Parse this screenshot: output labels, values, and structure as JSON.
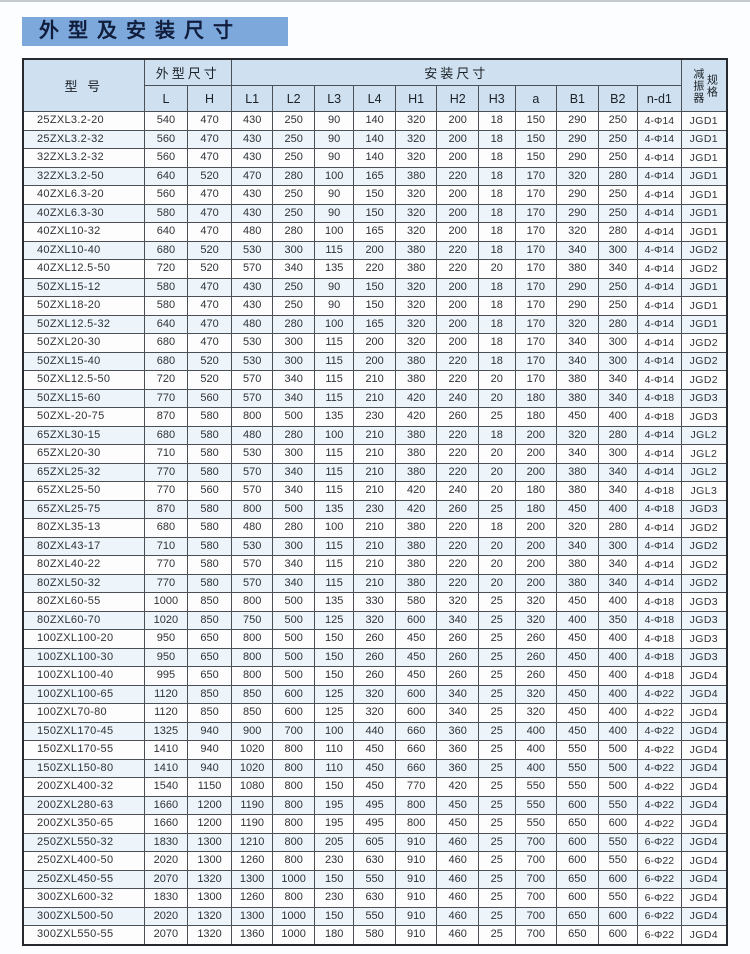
{
  "page": {
    "title": "外型及安装尺寸"
  },
  "colors": {
    "title_bg": "#7ca8dc",
    "title_text": "#101d3c",
    "header_bg": "#cfe1f0",
    "border": "#4b5056",
    "border_strong": "#26292e"
  },
  "table": {
    "header": {
      "model": "型 号",
      "outline_group": "外型尺寸",
      "install_group": "安装尺寸",
      "damper_line1": "减振器",
      "damper_line2": "规格",
      "columns": [
        "L",
        "H",
        "L1",
        "L2",
        "L3",
        "L4",
        "H1",
        "H2",
        "H3",
        "a",
        "B1",
        "B2",
        "n-d1"
      ]
    },
    "rows": [
      [
        "25ZXL3.2-20",
        "540",
        "470",
        "430",
        "250",
        "90",
        "140",
        "320",
        "200",
        "18",
        "150",
        "290",
        "250",
        "4-Φ14",
        "JGD1"
      ],
      [
        "25ZXL3.2-32",
        "560",
        "470",
        "430",
        "250",
        "90",
        "140",
        "320",
        "200",
        "18",
        "150",
        "290",
        "250",
        "4-Φ14",
        "JGD1"
      ],
      [
        "32ZXL3.2-32",
        "560",
        "470",
        "430",
        "250",
        "90",
        "140",
        "320",
        "200",
        "18",
        "150",
        "290",
        "250",
        "4-Φ14",
        "JGD1"
      ],
      [
        "32ZXL3.2-50",
        "640",
        "520",
        "470",
        "280",
        "100",
        "165",
        "380",
        "220",
        "18",
        "170",
        "320",
        "280",
        "4-Φ14",
        "JGD1"
      ],
      [
        "40ZXL6.3-20",
        "560",
        "470",
        "430",
        "250",
        "90",
        "150",
        "320",
        "200",
        "18",
        "170",
        "290",
        "250",
        "4-Φ14",
        "JGD1"
      ],
      [
        "40ZXL6.3-30",
        "580",
        "470",
        "430",
        "250",
        "90",
        "150",
        "320",
        "200",
        "18",
        "170",
        "290",
        "250",
        "4-Φ14",
        "JGD1"
      ],
      [
        "40ZXL10-32",
        "640",
        "470",
        "480",
        "280",
        "100",
        "165",
        "320",
        "200",
        "18",
        "170",
        "320",
        "280",
        "4-Φ14",
        "JGD1"
      ],
      [
        "40ZXL10-40",
        "680",
        "520",
        "530",
        "300",
        "115",
        "200",
        "380",
        "220",
        "18",
        "170",
        "340",
        "300",
        "4-Φ14",
        "JGD2"
      ],
      [
        "40ZXL12.5-50",
        "720",
        "520",
        "570",
        "340",
        "135",
        "220",
        "380",
        "220",
        "20",
        "170",
        "380",
        "340",
        "4-Φ14",
        "JGD2"
      ],
      [
        "50ZXL15-12",
        "580",
        "470",
        "430",
        "250",
        "90",
        "150",
        "320",
        "200",
        "18",
        "170",
        "290",
        "250",
        "4-Φ14",
        "JGD1"
      ],
      [
        "50ZXL18-20",
        "580",
        "470",
        "430",
        "250",
        "90",
        "150",
        "320",
        "200",
        "18",
        "170",
        "290",
        "250",
        "4-Φ14",
        "JGD1"
      ],
      [
        "50ZXL12.5-32",
        "640",
        "470",
        "480",
        "280",
        "100",
        "165",
        "320",
        "200",
        "18",
        "170",
        "320",
        "280",
        "4-Φ14",
        "JGD1"
      ],
      [
        "50ZXL20-30",
        "680",
        "470",
        "530",
        "300",
        "115",
        "200",
        "320",
        "200",
        "18",
        "170",
        "340",
        "300",
        "4-Φ14",
        "JGD2"
      ],
      [
        "50ZXL15-40",
        "680",
        "520",
        "530",
        "300",
        "115",
        "200",
        "380",
        "220",
        "18",
        "170",
        "340",
        "300",
        "4-Φ14",
        "JGD2"
      ],
      [
        "50ZXL12.5-50",
        "720",
        "520",
        "570",
        "340",
        "115",
        "210",
        "380",
        "220",
        "20",
        "170",
        "380",
        "340",
        "4-Φ14",
        "JGD2"
      ],
      [
        "50ZXL15-60",
        "770",
        "560",
        "570",
        "340",
        "115",
        "210",
        "420",
        "240",
        "20",
        "180",
        "380",
        "340",
        "4-Φ18",
        "JGD3"
      ],
      [
        "50ZXL-20-75",
        "870",
        "580",
        "800",
        "500",
        "135",
        "230",
        "420",
        "260",
        "25",
        "180",
        "450",
        "400",
        "4-Φ18",
        "JGD3"
      ],
      [
        "65ZXL30-15",
        "680",
        "580",
        "480",
        "280",
        "100",
        "210",
        "380",
        "220",
        "18",
        "200",
        "320",
        "280",
        "4-Φ14",
        "JGL2"
      ],
      [
        "65ZXL20-30",
        "710",
        "580",
        "530",
        "300",
        "115",
        "210",
        "380",
        "220",
        "20",
        "200",
        "340",
        "300",
        "4-Φ14",
        "JGL2"
      ],
      [
        "65ZXL25-32",
        "770",
        "580",
        "570",
        "340",
        "115",
        "210",
        "380",
        "220",
        "20",
        "200",
        "380",
        "340",
        "4-Φ14",
        "JGL2"
      ],
      [
        "65ZXL25-50",
        "770",
        "560",
        "570",
        "340",
        "115",
        "210",
        "420",
        "240",
        "20",
        "180",
        "380",
        "340",
        "4-Φ18",
        "JGL3"
      ],
      [
        "65ZXL25-75",
        "870",
        "580",
        "800",
        "500",
        "135",
        "230",
        "420",
        "260",
        "25",
        "180",
        "450",
        "400",
        "4-Φ18",
        "JGD3"
      ],
      [
        "80ZXL35-13",
        "680",
        "580",
        "480",
        "280",
        "100",
        "210",
        "380",
        "220",
        "18",
        "200",
        "320",
        "280",
        "4-Φ14",
        "JGD2"
      ],
      [
        "80ZXL43-17",
        "710",
        "580",
        "530",
        "300",
        "115",
        "210",
        "380",
        "220",
        "20",
        "200",
        "340",
        "300",
        "4-Φ14",
        "JGD2"
      ],
      [
        "80ZXL40-22",
        "770",
        "580",
        "570",
        "340",
        "115",
        "210",
        "380",
        "220",
        "20",
        "200",
        "380",
        "340",
        "4-Φ14",
        "JGD2"
      ],
      [
        "80ZXL50-32",
        "770",
        "580",
        "570",
        "340",
        "115",
        "210",
        "380",
        "220",
        "20",
        "200",
        "380",
        "340",
        "4-Φ14",
        "JGD2"
      ],
      [
        "80ZXL60-55",
        "1000",
        "850",
        "800",
        "500",
        "135",
        "330",
        "580",
        "320",
        "25",
        "320",
        "450",
        "400",
        "4-Φ18",
        "JGD3"
      ],
      [
        "80ZXL60-70",
        "1020",
        "850",
        "750",
        "500",
        "125",
        "320",
        "600",
        "340",
        "25",
        "320",
        "400",
        "350",
        "4-Φ18",
        "JGD3"
      ],
      [
        "100ZXL100-20",
        "950",
        "650",
        "800",
        "500",
        "150",
        "260",
        "450",
        "260",
        "25",
        "260",
        "450",
        "400",
        "4-Φ18",
        "JGD3"
      ],
      [
        "100ZXL100-30",
        "950",
        "650",
        "800",
        "500",
        "150",
        "260",
        "450",
        "260",
        "25",
        "260",
        "450",
        "400",
        "4-Φ18",
        "JGD3"
      ],
      [
        "100ZXL100-40",
        "995",
        "650",
        "800",
        "500",
        "150",
        "260",
        "450",
        "260",
        "25",
        "260",
        "450",
        "400",
        "4-Φ18",
        "JGD4"
      ],
      [
        "100ZXL100-65",
        "1120",
        "850",
        "850",
        "600",
        "125",
        "320",
        "600",
        "340",
        "25",
        "320",
        "450",
        "400",
        "4-Φ22",
        "JGD4"
      ],
      [
        "100ZXL70-80",
        "1120",
        "850",
        "850",
        "600",
        "125",
        "320",
        "600",
        "340",
        "25",
        "320",
        "450",
        "400",
        "4-Φ22",
        "JGD4"
      ],
      [
        "150ZXL170-45",
        "1325",
        "940",
        "900",
        "700",
        "100",
        "440",
        "660",
        "360",
        "25",
        "400",
        "450",
        "400",
        "4-Φ22",
        "JGD4"
      ],
      [
        "150ZXL170-55",
        "1410",
        "940",
        "1020",
        "800",
        "110",
        "450",
        "660",
        "360",
        "25",
        "400",
        "550",
        "500",
        "4-Φ22",
        "JGD4"
      ],
      [
        "150ZXL150-80",
        "1410",
        "940",
        "1020",
        "800",
        "110",
        "450",
        "660",
        "360",
        "25",
        "400",
        "550",
        "500",
        "4-Φ22",
        "JGD4"
      ],
      [
        "200ZXL400-32",
        "1540",
        "1150",
        "1080",
        "800",
        "150",
        "450",
        "770",
        "420",
        "25",
        "550",
        "550",
        "500",
        "4-Φ22",
        "JGD4"
      ],
      [
        "200ZXL280-63",
        "1660",
        "1200",
        "1190",
        "800",
        "195",
        "495",
        "800",
        "450",
        "25",
        "550",
        "600",
        "550",
        "4-Φ22",
        "JGD4"
      ],
      [
        "200ZXL350-65",
        "1660",
        "1200",
        "1190",
        "800",
        "195",
        "495",
        "800",
        "450",
        "25",
        "550",
        "650",
        "600",
        "4-Φ22",
        "JGD4"
      ],
      [
        "250ZXL550-32",
        "1830",
        "1300",
        "1210",
        "800",
        "205",
        "605",
        "910",
        "460",
        "25",
        "700",
        "600",
        "550",
        "6-Φ22",
        "JGD4"
      ],
      [
        "250ZXL400-50",
        "2020",
        "1300",
        "1260",
        "800",
        "230",
        "630",
        "910",
        "460",
        "25",
        "700",
        "600",
        "550",
        "6-Φ22",
        "JGD4"
      ],
      [
        "250ZXL450-55",
        "2070",
        "1320",
        "1300",
        "1000",
        "150",
        "550",
        "910",
        "460",
        "25",
        "700",
        "650",
        "600",
        "6-Φ22",
        "JGD4"
      ],
      [
        "300ZXL600-32",
        "1830",
        "1300",
        "1260",
        "800",
        "230",
        "630",
        "910",
        "460",
        "25",
        "700",
        "600",
        "550",
        "6-Φ22",
        "JGD4"
      ],
      [
        "300ZXL500-50",
        "2020",
        "1320",
        "1300",
        "1000",
        "150",
        "550",
        "910",
        "460",
        "25",
        "700",
        "650",
        "600",
        "6-Φ22",
        "JGD4"
      ],
      [
        "300ZXL550-55",
        "2070",
        "1320",
        "1360",
        "1000",
        "180",
        "580",
        "910",
        "460",
        "25",
        "700",
        "650",
        "600",
        "6-Φ22",
        "JGD4"
      ]
    ]
  }
}
